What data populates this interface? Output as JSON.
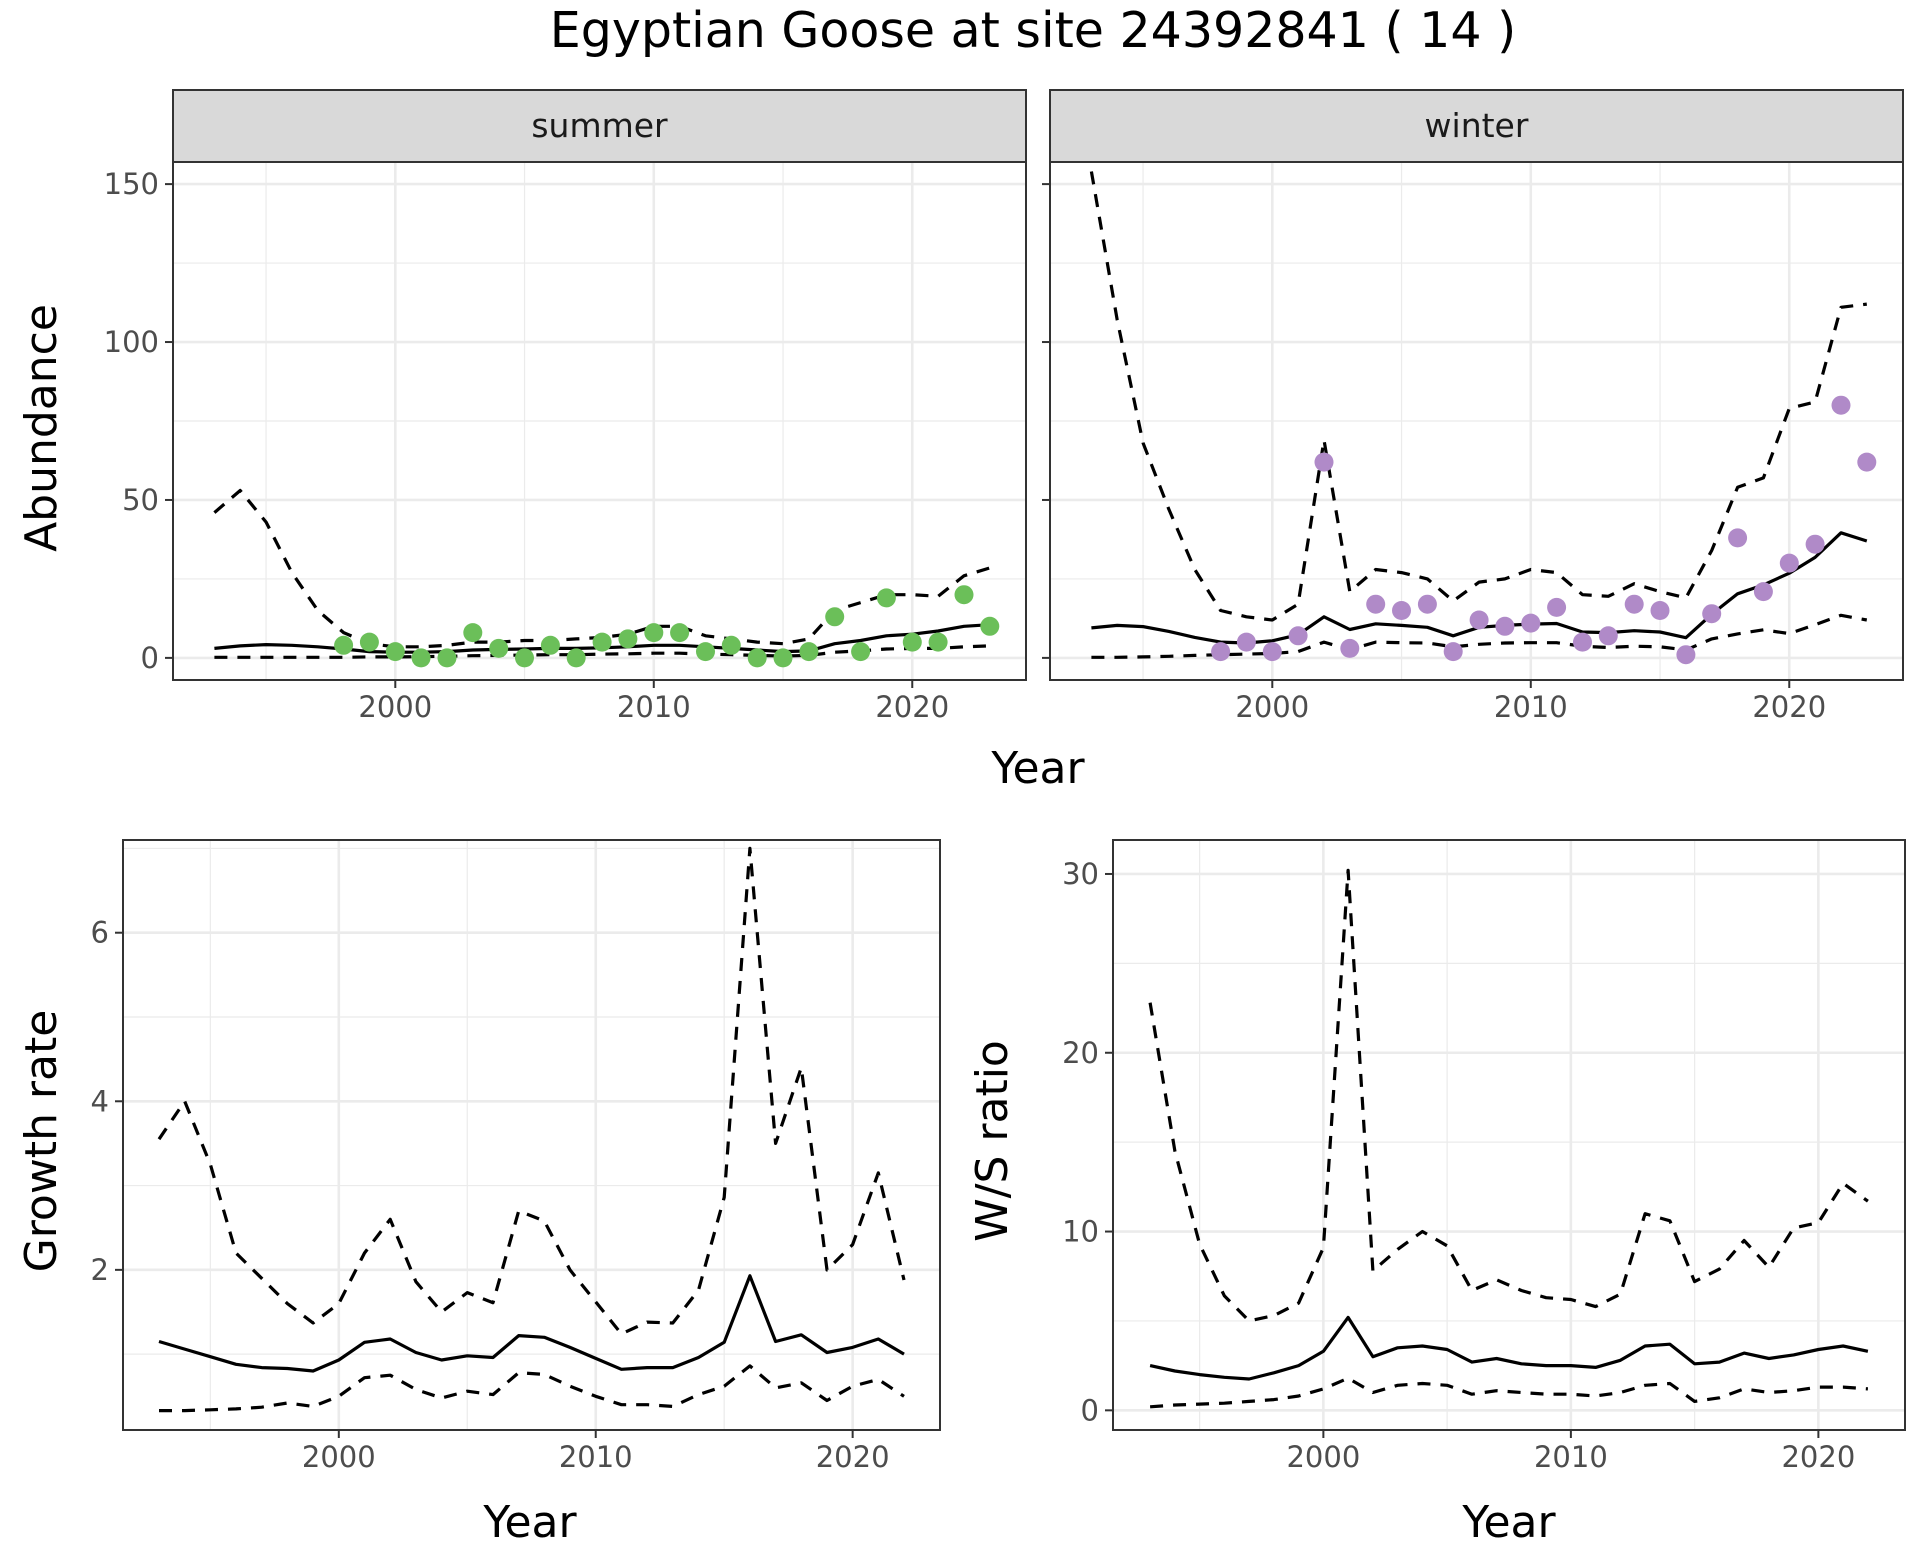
{
  "title": "Egyptian Goose at site 24392841 ( 14 )",
  "colors": {
    "summer_points": "#6BBF59",
    "winter_points": "#B08AC8",
    "line": "#000000",
    "strip_bg": "#D9D9D9",
    "grid": "#EBEBEB"
  },
  "chart_data": [
    {
      "type": "line",
      "facet": "summer",
      "title": "",
      "xlabel": "Year",
      "ylabel": "Abundance",
      "xlim": [
        1991.4,
        2024.4
      ],
      "ylim": [
        -7,
        157
      ],
      "xticks": [
        2000,
        2010,
        2020
      ],
      "yticks": [
        0,
        50,
        100,
        150
      ],
      "grid": true,
      "x": [
        1993,
        1994,
        1995,
        1996,
        1997,
        1998,
        1999,
        2000,
        2001,
        2002,
        2003,
        2004,
        2005,
        2006,
        2007,
        2008,
        2009,
        2010,
        2011,
        2012,
        2013,
        2014,
        2015,
        2016,
        2017,
        2018,
        2019,
        2020,
        2021,
        2022,
        2023
      ],
      "series": [
        {
          "role": "estimate",
          "style": "solid",
          "values": [
            3,
            3.8,
            4.2,
            4,
            3.5,
            2.8,
            2,
            1.8,
            1.8,
            2,
            2.5,
            2.7,
            2.8,
            3,
            3,
            3.2,
            3.5,
            4,
            4,
            3.5,
            3,
            2.5,
            2,
            2.2,
            4.5,
            5.5,
            7,
            7.5,
            8.5,
            10,
            10.5
          ]
        },
        {
          "role": "upper",
          "style": "dashed",
          "values": [
            46,
            53,
            43,
            27,
            15,
            8,
            4.5,
            3.5,
            3.5,
            4,
            5,
            5,
            5.5,
            5.5,
            6,
            6.5,
            7.5,
            10,
            10,
            7,
            6,
            5,
            4.5,
            6,
            15,
            17.5,
            20,
            20,
            19.5,
            26,
            28.5
          ]
        },
        {
          "role": "lower",
          "style": "dashed",
          "values": [
            0.2,
            0.2,
            0.2,
            0.2,
            0.2,
            0.2,
            0.3,
            0.3,
            0.4,
            0.5,
            0.7,
            0.8,
            0.9,
            1,
            1,
            1.2,
            1.3,
            1.5,
            1.5,
            1.2,
            1,
            0.8,
            0.6,
            0.8,
            1.8,
            2.2,
            2.8,
            3,
            3,
            3.5,
            3.8
          ]
        }
      ],
      "points": {
        "x": [
          1998,
          1999,
          2000,
          2001,
          2002,
          2003,
          2004,
          2005,
          2006,
          2007,
          2008,
          2009,
          2010,
          2011,
          2012,
          2013,
          2014,
          2015,
          2016,
          2017,
          2018,
          2019,
          2020,
          2021,
          2022,
          2023
        ],
        "y": [
          4,
          5,
          2,
          0,
          0,
          8,
          3,
          0,
          4,
          0,
          5,
          6,
          8,
          8,
          2,
          4,
          0,
          0,
          2,
          13,
          2,
          19,
          5,
          5,
          20,
          10
        ]
      }
    },
    {
      "type": "line",
      "facet": "winter",
      "title": "",
      "xlabel": "Year",
      "ylabel": "Abundance",
      "xlim": [
        1991.4,
        2024.4
      ],
      "ylim": [
        -7,
        157
      ],
      "xticks": [
        2000,
        2010,
        2020
      ],
      "yticks": [
        0,
        50,
        100,
        150
      ],
      "grid": true,
      "x": [
        1993,
        1994,
        1995,
        1996,
        1997,
        1998,
        1999,
        2000,
        2001,
        2002,
        2003,
        2004,
        2005,
        2006,
        2007,
        2008,
        2009,
        2010,
        2011,
        2012,
        2013,
        2014,
        2015,
        2016,
        2017,
        2018,
        2019,
        2020,
        2021,
        2022,
        2023
      ],
      "series": [
        {
          "role": "estimate",
          "style": "solid",
          "values": [
            9.5,
            10.3,
            9.9,
            8.4,
            6.5,
            5,
            4.7,
            5.4,
            7.3,
            13,
            9,
            10.8,
            10.3,
            9.7,
            7,
            9.7,
            10.3,
            10.7,
            10.9,
            8.2,
            8,
            8.6,
            8.2,
            6.4,
            13.8,
            20.3,
            23.1,
            26.8,
            31.8,
            39.6,
            37
          ]
        },
        {
          "role": "upper",
          "style": "dashed",
          "values": [
            154,
            107,
            68,
            47,
            28,
            15,
            13,
            12,
            17,
            69,
            21,
            28,
            27,
            25,
            18,
            24,
            25,
            28,
            27,
            20,
            19.5,
            23.5,
            21,
            19,
            34,
            54,
            57,
            79,
            81,
            111,
            112
          ]
        },
        {
          "role": "lower",
          "style": "dashed",
          "values": [
            0.2,
            0.2,
            0.3,
            0.5,
            0.8,
            1,
            1.2,
            1.4,
            2,
            5,
            2.6,
            5,
            4.8,
            4.7,
            3.5,
            4.3,
            4.7,
            4.8,
            4.8,
            3.7,
            3.3,
            3.7,
            3.5,
            2.5,
            6,
            7.6,
            8.9,
            7.7,
            10.5,
            13.5,
            12
          ]
        }
      ],
      "points": {
        "x": [
          1998,
          1999,
          2000,
          2001,
          2002,
          2003,
          2004,
          2005,
          2006,
          2007,
          2008,
          2009,
          2010,
          2011,
          2012,
          2013,
          2014,
          2015,
          2016,
          2017,
          2018,
          2019,
          2020,
          2021,
          2022,
          2023
        ],
        "y": [
          2,
          5,
          2,
          7,
          62,
          3,
          17,
          15,
          17,
          2,
          12,
          10,
          11,
          16,
          5,
          7,
          17,
          15,
          1,
          14,
          38,
          21,
          30,
          36,
          80,
          62
        ]
      }
    },
    {
      "type": "line",
      "facet": "",
      "title": "",
      "xlabel": "Year",
      "ylabel": "Growth rate",
      "xlim": [
        1991.6,
        2023.4
      ],
      "ylim": [
        0.1,
        7.1
      ],
      "xticks": [
        2000,
        2010,
        2020
      ],
      "yticks": [
        2,
        4,
        6
      ],
      "grid": true,
      "x": [
        1993,
        1994,
        1995,
        1996,
        1997,
        1998,
        1999,
        2000,
        2001,
        2002,
        2003,
        2004,
        2005,
        2006,
        2007,
        2008,
        2009,
        2010,
        2011,
        2012,
        2013,
        2014,
        2015,
        2016,
        2017,
        2018,
        2019,
        2020,
        2021,
        2022
      ],
      "series": [
        {
          "role": "estimate",
          "style": "solid",
          "values": [
            1.15,
            1.06,
            0.97,
            0.88,
            0.84,
            0.83,
            0.8,
            0.93,
            1.14,
            1.18,
            1.02,
            0.93,
            0.98,
            0.96,
            1.22,
            1.2,
            1.08,
            0.95,
            0.82,
            0.84,
            0.84,
            0.96,
            1.14,
            1.93,
            1.15,
            1.23,
            1.02,
            1.08,
            1.18,
            1
          ]
        },
        {
          "role": "upper",
          "style": "dashed",
          "values": [
            3.55,
            4,
            3.25,
            2.2,
            1.9,
            1.6,
            1.37,
            1.6,
            2.2,
            2.6,
            1.86,
            1.5,
            1.73,
            1.61,
            2.7,
            2.58,
            2,
            1.62,
            1.24,
            1.38,
            1.37,
            1.76,
            2.86,
            7,
            3.5,
            4.4,
            2,
            2.3,
            3.15,
            1.88
          ]
        },
        {
          "role": "lower",
          "style": "dashed",
          "values": [
            0.33,
            0.33,
            0.34,
            0.35,
            0.37,
            0.42,
            0.38,
            0.5,
            0.72,
            0.75,
            0.58,
            0.48,
            0.56,
            0.52,
            0.78,
            0.76,
            0.62,
            0.5,
            0.4,
            0.4,
            0.38,
            0.52,
            0.62,
            0.86,
            0.6,
            0.66,
            0.45,
            0.62,
            0.7,
            0.5
          ]
        }
      ]
    },
    {
      "type": "line",
      "facet": "",
      "title": "",
      "xlabel": "Year",
      "ylabel": "W/S ratio",
      "xlim": [
        1991.5,
        2023.5
      ],
      "ylim": [
        -1.1,
        31.9
      ],
      "xticks": [
        2000,
        2010,
        2020
      ],
      "yticks": [
        0,
        10,
        20,
        30
      ],
      "grid": true,
      "x": [
        1993,
        1994,
        1995,
        1996,
        1997,
        1998,
        1999,
        2000,
        2001,
        2002,
        2003,
        2004,
        2005,
        2006,
        2007,
        2008,
        2009,
        2010,
        2011,
        2012,
        2013,
        2014,
        2015,
        2016,
        2017,
        2018,
        2019,
        2020,
        2021,
        2022
      ],
      "series": [
        {
          "role": "estimate",
          "style": "solid",
          "values": [
            2.5,
            2.2,
            2,
            1.85,
            1.75,
            2.1,
            2.5,
            3.3,
            5.2,
            3,
            3.5,
            3.6,
            3.4,
            2.7,
            2.9,
            2.6,
            2.5,
            2.5,
            2.4,
            2.8,
            3.6,
            3.7,
            2.6,
            2.7,
            3.2,
            2.9,
            3.1,
            3.4,
            3.6,
            3.3
          ]
        },
        {
          "role": "upper",
          "style": "dashed",
          "values": [
            22.8,
            14.5,
            9.3,
            6.4,
            5,
            5.3,
            6,
            9.1,
            30.2,
            7.8,
            9,
            10,
            9.2,
            6.7,
            7.3,
            6.7,
            6.3,
            6.2,
            5.8,
            6.5,
            11,
            10.6,
            7.2,
            7.9,
            9.5,
            8,
            10.2,
            10.5,
            12.7,
            11.7
          ]
        },
        {
          "role": "lower",
          "style": "dashed",
          "values": [
            0.2,
            0.3,
            0.35,
            0.4,
            0.5,
            0.6,
            0.8,
            1.2,
            1.8,
            1,
            1.4,
            1.5,
            1.4,
            0.9,
            1.1,
            1,
            0.9,
            0.9,
            0.8,
            1,
            1.4,
            1.5,
            0.5,
            0.7,
            1.2,
            1,
            1.1,
            1.3,
            1.3,
            1.2
          ]
        }
      ]
    }
  ]
}
